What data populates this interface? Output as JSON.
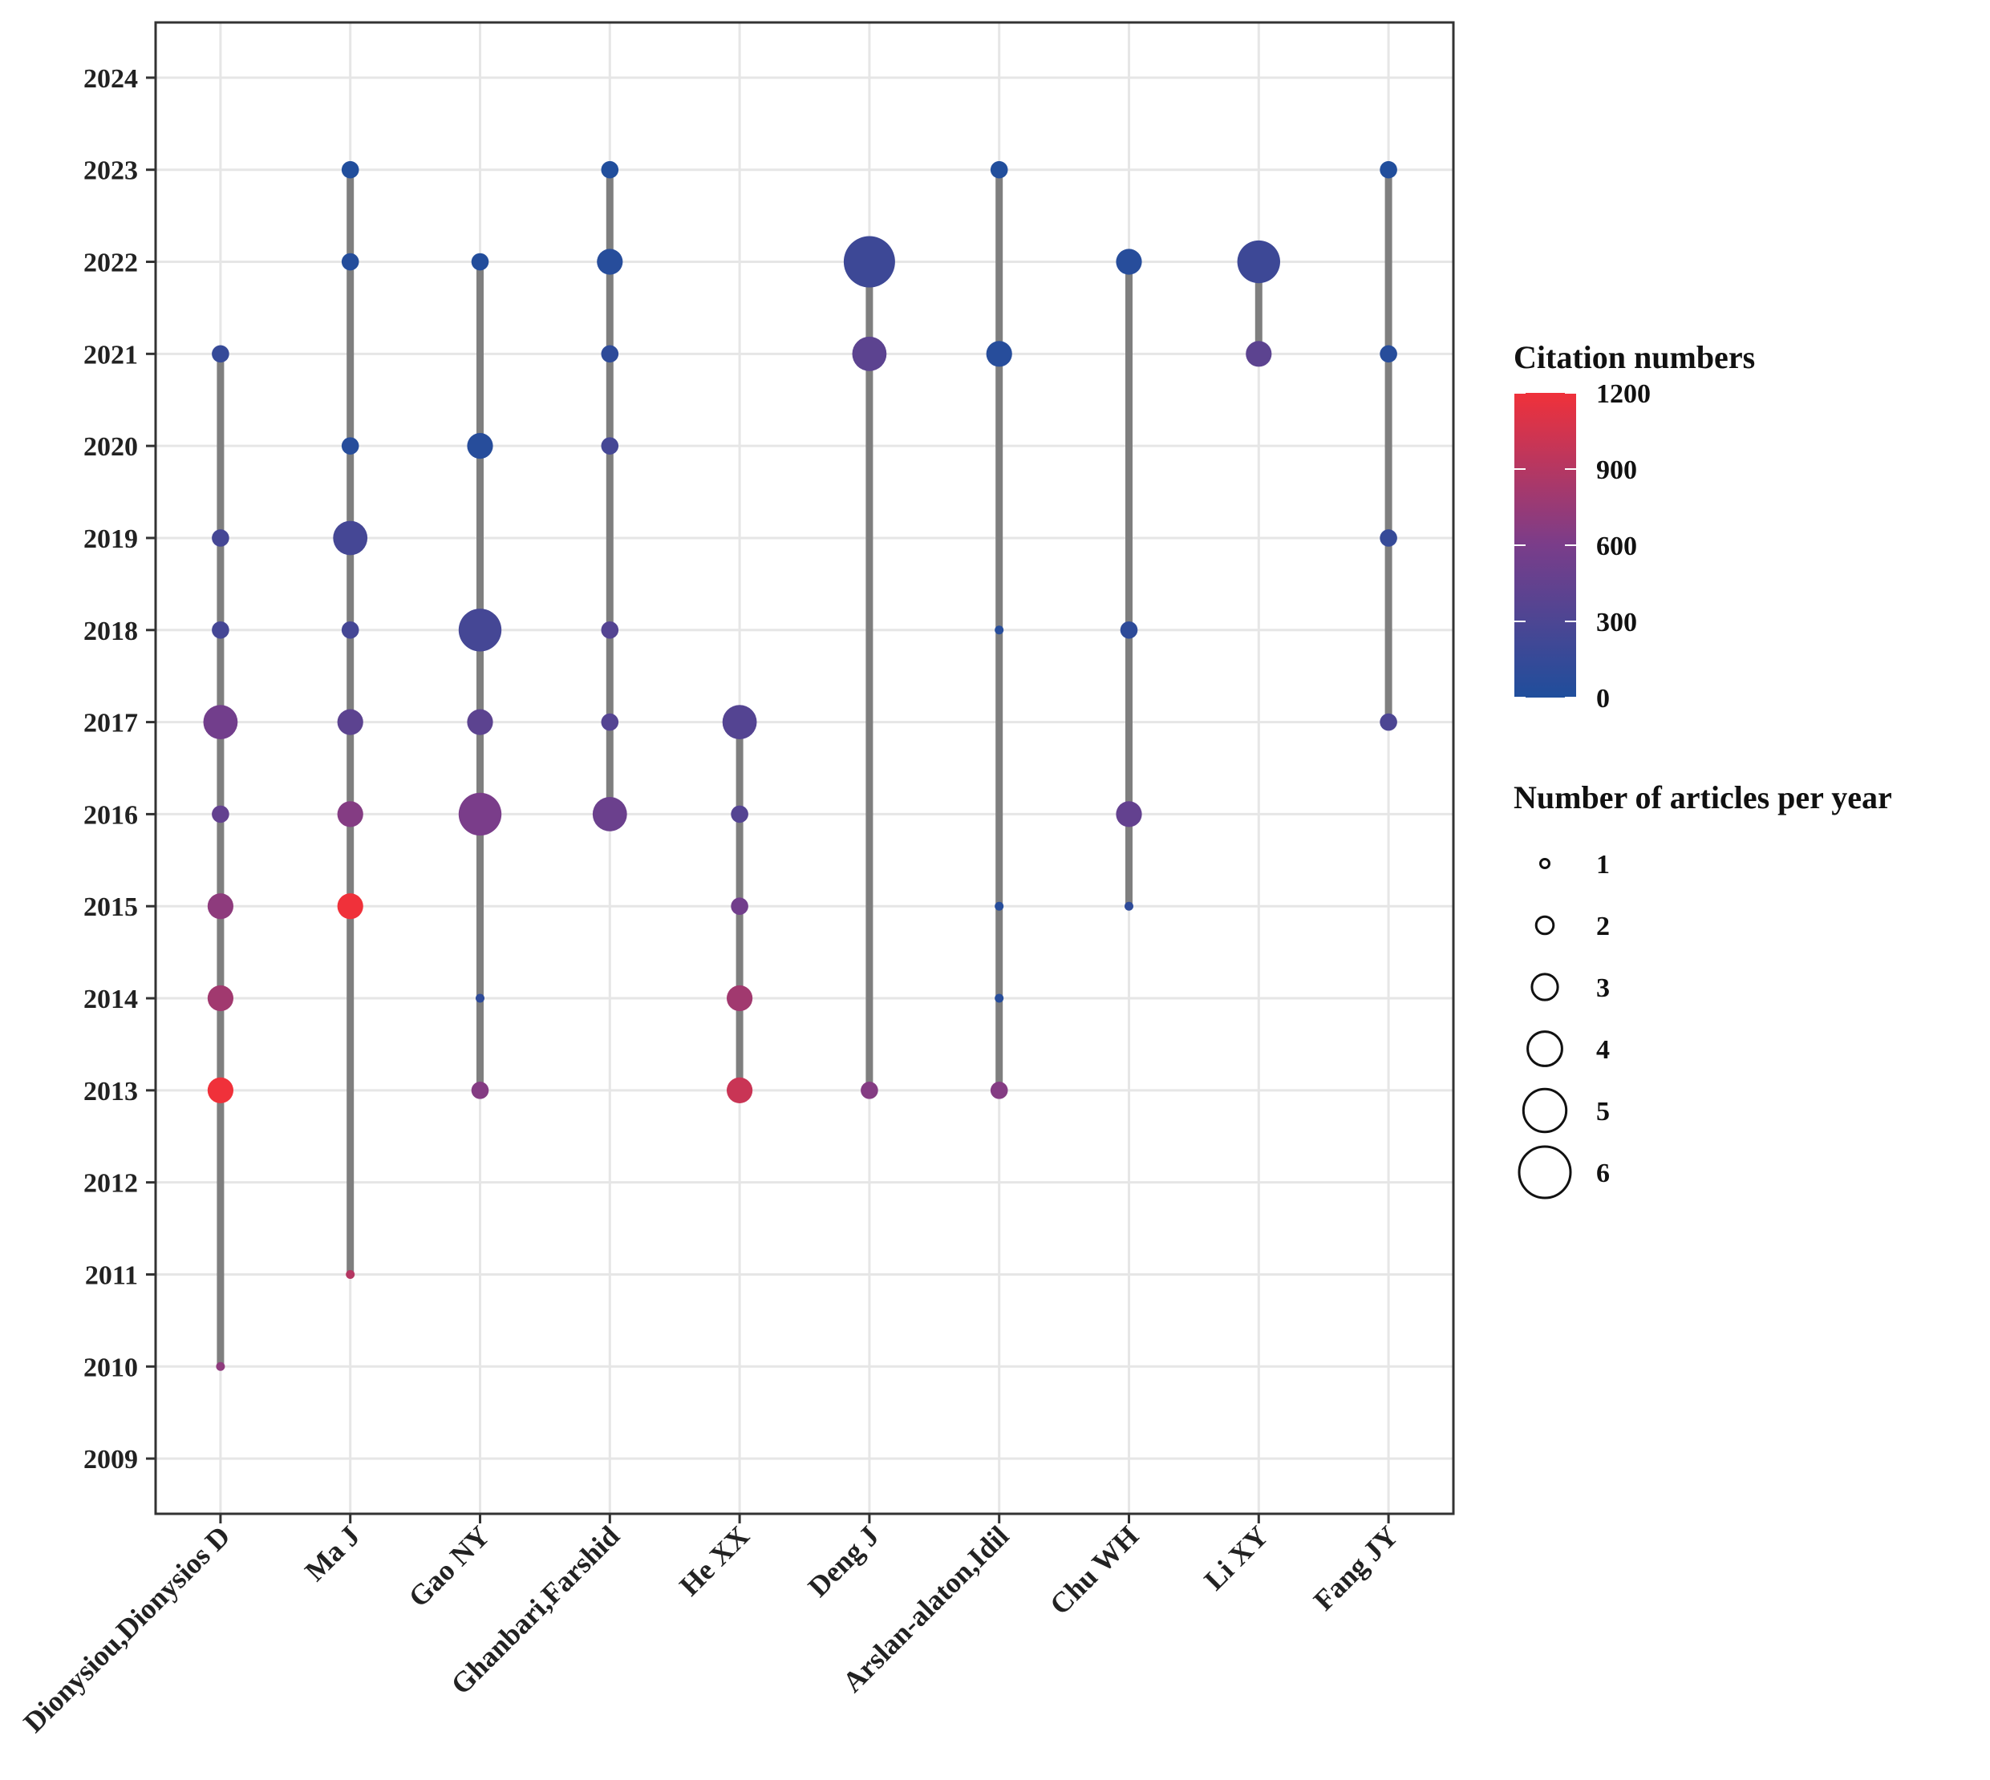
{
  "chart_data": {
    "type": "scatter",
    "subtype": "author-production-over-time",
    "authors": [
      "Dionysiou,Dionysios D",
      "Ma J",
      "Gao NY",
      "Ghanbari,Farshid",
      "He XX",
      "Deng J",
      "Arslan-alaton,Idil",
      "Chu WH",
      "Li XY",
      "Fang JY"
    ],
    "y_ticks": [
      2009,
      2010,
      2011,
      2012,
      2013,
      2014,
      2015,
      2016,
      2017,
      2018,
      2019,
      2020,
      2021,
      2022,
      2023,
      2024
    ],
    "ylim": [
      2008.4,
      2024.6
    ],
    "points": [
      {
        "author": "Dionysiou,Dionysios D",
        "year": 2010,
        "articles": 1,
        "citations": 700
      },
      {
        "author": "Dionysiou,Dionysios D",
        "year": 2013,
        "articles": 3,
        "citations": 1200
      },
      {
        "author": "Dionysiou,Dionysios D",
        "year": 2014,
        "articles": 3,
        "citations": 800
      },
      {
        "author": "Dionysiou,Dionysios D",
        "year": 2015,
        "articles": 3,
        "citations": 700
      },
      {
        "author": "Dionysiou,Dionysios D",
        "year": 2016,
        "articles": 2,
        "citations": 450
      },
      {
        "author": "Dionysiou,Dionysios D",
        "year": 2017,
        "articles": 4,
        "citations": 550
      },
      {
        "author": "Dionysiou,Dionysios D",
        "year": 2018,
        "articles": 2,
        "citations": 250
      },
      {
        "author": "Dionysiou,Dionysios D",
        "year": 2019,
        "articles": 2,
        "citations": 250
      },
      {
        "author": "Dionysiou,Dionysios D",
        "year": 2021,
        "articles": 2,
        "citations": 150
      },
      {
        "author": "Ma J",
        "year": 2011,
        "articles": 1,
        "citations": 900
      },
      {
        "author": "Ma J",
        "year": 2015,
        "articles": 3,
        "citations": 1200
      },
      {
        "author": "Ma J",
        "year": 2016,
        "articles": 3,
        "citations": 650
      },
      {
        "author": "Ma J",
        "year": 2017,
        "articles": 3,
        "citations": 400
      },
      {
        "author": "Ma J",
        "year": 2018,
        "articles": 2,
        "citations": 250
      },
      {
        "author": "Ma J",
        "year": 2019,
        "articles": 4,
        "citations": 250
      },
      {
        "author": "Ma J",
        "year": 2020,
        "articles": 2,
        "citations": 50
      },
      {
        "author": "Ma J",
        "year": 2022,
        "articles": 2,
        "citations": 30
      },
      {
        "author": "Ma J",
        "year": 2023,
        "articles": 2,
        "citations": 10
      },
      {
        "author": "Gao NY",
        "year": 2013,
        "articles": 2,
        "citations": 650
      },
      {
        "author": "Gao NY",
        "year": 2014,
        "articles": 1,
        "citations": 100
      },
      {
        "author": "Gao NY",
        "year": 2016,
        "articles": 5,
        "citations": 600
      },
      {
        "author": "Gao NY",
        "year": 2017,
        "articles": 3,
        "citations": 400
      },
      {
        "author": "Gao NY",
        "year": 2018,
        "articles": 5,
        "citations": 250
      },
      {
        "author": "Gao NY",
        "year": 2020,
        "articles": 3,
        "citations": 50
      },
      {
        "author": "Gao NY",
        "year": 2022,
        "articles": 2,
        "citations": 20
      },
      {
        "author": "Ghanbari,Farshid",
        "year": 2016,
        "articles": 4,
        "citations": 500
      },
      {
        "author": "Ghanbari,Farshid",
        "year": 2017,
        "articles": 2,
        "citations": 350
      },
      {
        "author": "Ghanbari,Farshid",
        "year": 2018,
        "articles": 2,
        "citations": 350
      },
      {
        "author": "Ghanbari,Farshid",
        "year": 2020,
        "articles": 2,
        "citations": 250
      },
      {
        "author": "Ghanbari,Farshid",
        "year": 2021,
        "articles": 2,
        "citations": 100
      },
      {
        "author": "Ghanbari,Farshid",
        "year": 2022,
        "articles": 3,
        "citations": 50
      },
      {
        "author": "Ghanbari,Farshid",
        "year": 2023,
        "articles": 2,
        "citations": 10
      },
      {
        "author": "He XX",
        "year": 2013,
        "articles": 3,
        "citations": 1000
      },
      {
        "author": "He XX",
        "year": 2014,
        "articles": 3,
        "citations": 800
      },
      {
        "author": "He XX",
        "year": 2015,
        "articles": 2,
        "citations": 550
      },
      {
        "author": "He XX",
        "year": 2016,
        "articles": 2,
        "citations": 350
      },
      {
        "author": "He XX",
        "year": 2017,
        "articles": 4,
        "citations": 350
      },
      {
        "author": "Deng J",
        "year": 2013,
        "articles": 2,
        "citations": 650
      },
      {
        "author": "Deng J",
        "year": 2021,
        "articles": 4,
        "citations": 400
      },
      {
        "author": "Deng J",
        "year": 2022,
        "articles": 6,
        "citations": 200
      },
      {
        "author": "Arslan-alaton,Idil",
        "year": 2013,
        "articles": 2,
        "citations": 650
      },
      {
        "author": "Arslan-alaton,Idil",
        "year": 2014,
        "articles": 1,
        "citations": 50
      },
      {
        "author": "Arslan-alaton,Idil",
        "year": 2015,
        "articles": 1,
        "citations": 50
      },
      {
        "author": "Arslan-alaton,Idil",
        "year": 2018,
        "articles": 1,
        "citations": 50
      },
      {
        "author": "Arslan-alaton,Idil",
        "year": 2021,
        "articles": 3,
        "citations": 50
      },
      {
        "author": "Arslan-alaton,Idil",
        "year": 2023,
        "articles": 2,
        "citations": 10
      },
      {
        "author": "Chu WH",
        "year": 2015,
        "articles": 1,
        "citations": 100
      },
      {
        "author": "Chu WH",
        "year": 2016,
        "articles": 3,
        "citations": 450
      },
      {
        "author": "Chu WH",
        "year": 2018,
        "articles": 2,
        "citations": 100
      },
      {
        "author": "Chu WH",
        "year": 2022,
        "articles": 3,
        "citations": 50
      },
      {
        "author": "Li XY",
        "year": 2021,
        "articles": 3,
        "citations": 400
      },
      {
        "author": "Li XY",
        "year": 2022,
        "articles": 5,
        "citations": 200
      },
      {
        "author": "Fang JY",
        "year": 2017,
        "articles": 2,
        "citations": 300
      },
      {
        "author": "Fang JY",
        "year": 2019,
        "articles": 2,
        "citations": 150
      },
      {
        "author": "Fang JY",
        "year": 2021,
        "articles": 2,
        "citations": 50
      },
      {
        "author": "Fang JY",
        "year": 2023,
        "articles": 2,
        "citations": 10
      }
    ],
    "color_legend": {
      "title": "Citation numbers",
      "ticks": [
        0,
        300,
        600,
        900,
        1200
      ],
      "range": [
        0,
        1200
      ],
      "low_color": "#1f4e9c",
      "mid_color": "#7a3d8a",
      "high_color": "#f0313a"
    },
    "size_legend": {
      "title": "Number of articles per year",
      "values": [
        1,
        2,
        3,
        4,
        5,
        6
      ]
    },
    "colors": {
      "segment": "#7f7f7f",
      "grid": "#e6e6e6",
      "axis": "#333333"
    },
    "grid": true
  }
}
